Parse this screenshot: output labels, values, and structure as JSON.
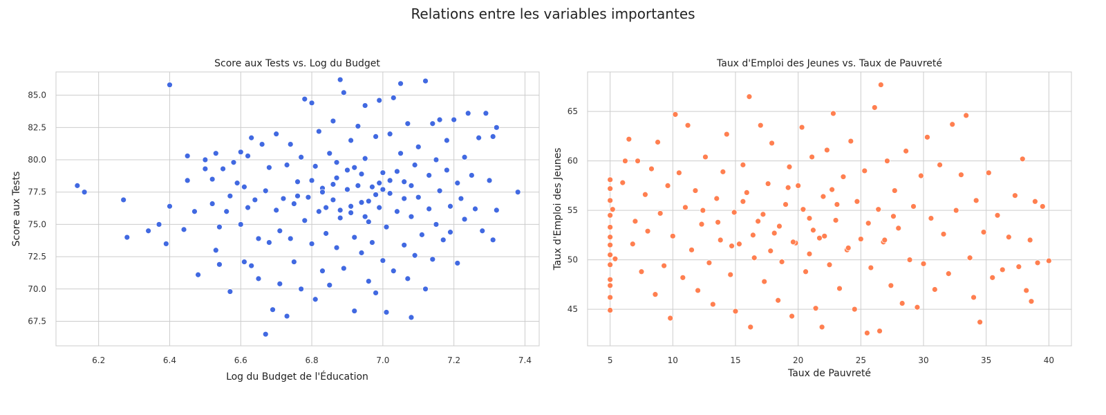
{
  "figure": {
    "suptitle": "Relations entre les variables importantes"
  },
  "chart_data": [
    {
      "type": "scatter",
      "title": "Score aux Tests vs. Log du Budget",
      "xlabel": "Log du Budget de l'Éducation",
      "ylabel": "Score aux Tests",
      "xlim": [
        6.08,
        7.44
      ],
      "ylim": [
        65.6,
        86.8
      ],
      "xticks": [
        6.2,
        6.4,
        6.6,
        6.8,
        7.0,
        7.2,
        7.4
      ],
      "xtick_labels": [
        "6.2",
        "6.4",
        "6.6",
        "6.8",
        "7.0",
        "7.2",
        "7.4"
      ],
      "yticks": [
        67.5,
        70.0,
        72.5,
        75.0,
        77.5,
        80.0,
        82.5,
        85.0
      ],
      "ytick_labels": [
        "67.5",
        "70.0",
        "72.5",
        "75.0",
        "77.5",
        "80.0",
        "82.5",
        "85.0"
      ],
      "grid": true,
      "color": "#4169E1",
      "points": [
        [
          6.14,
          78.0
        ],
        [
          6.16,
          77.5
        ],
        [
          6.27,
          76.9
        ],
        [
          6.28,
          74.0
        ],
        [
          6.34,
          74.5
        ],
        [
          6.37,
          75.0
        ],
        [
          6.39,
          73.5
        ],
        [
          6.4,
          76.4
        ],
        [
          6.4,
          85.8
        ],
        [
          6.44,
          74.6
        ],
        [
          6.45,
          78.4
        ],
        [
          6.45,
          80.3
        ],
        [
          6.47,
          76.0
        ],
        [
          6.48,
          71.1
        ],
        [
          6.5,
          79.3
        ],
        [
          6.5,
          80.0
        ],
        [
          6.52,
          76.6
        ],
        [
          6.52,
          78.5
        ],
        [
          6.53,
          80.5
        ],
        [
          6.53,
          73.0
        ],
        [
          6.54,
          71.9
        ],
        [
          6.54,
          74.8
        ],
        [
          6.55,
          79.3
        ],
        [
          6.56,
          76.0
        ],
        [
          6.57,
          69.8
        ],
        [
          6.57,
          77.2
        ],
        [
          6.58,
          79.8
        ],
        [
          6.59,
          78.2
        ],
        [
          6.6,
          75.0
        ],
        [
          6.6,
          80.6
        ],
        [
          6.61,
          72.1
        ],
        [
          6.61,
          77.9
        ],
        [
          6.62,
          76.3
        ],
        [
          6.62,
          80.3
        ],
        [
          6.63,
          81.7
        ],
        [
          6.63,
          71.8
        ],
        [
          6.64,
          76.9
        ],
        [
          6.65,
          73.9
        ],
        [
          6.65,
          70.8
        ],
        [
          6.66,
          81.2
        ],
        [
          6.67,
          66.5
        ],
        [
          6.67,
          77.6
        ],
        [
          6.68,
          73.6
        ],
        [
          6.68,
          79.4
        ],
        [
          6.69,
          68.4
        ],
        [
          6.7,
          76.1
        ],
        [
          6.7,
          82.0
        ],
        [
          6.71,
          70.4
        ],
        [
          6.71,
          74.5
        ],
        [
          6.72,
          77.0
        ],
        [
          6.73,
          79.6
        ],
        [
          6.73,
          67.9
        ],
        [
          6.74,
          81.2
        ],
        [
          6.74,
          73.9
        ],
        [
          6.75,
          76.6
        ],
        [
          6.75,
          72.1
        ],
        [
          6.76,
          78.3
        ],
        [
          6.77,
          70.0
        ],
        [
          6.77,
          80.2
        ],
        [
          6.78,
          75.3
        ],
        [
          6.78,
          84.7
        ],
        [
          6.79,
          77.1
        ],
        [
          6.8,
          73.5
        ],
        [
          6.8,
          84.4
        ],
        [
          6.81,
          69.2
        ],
        [
          6.81,
          79.5
        ],
        [
          6.82,
          76.0
        ],
        [
          6.82,
          82.2
        ],
        [
          6.83,
          71.4
        ],
        [
          6.83,
          77.8
        ],
        [
          6.84,
          74.3
        ],
        [
          6.85,
          80.5
        ],
        [
          6.85,
          70.3
        ],
        [
          6.86,
          76.9
        ],
        [
          6.86,
          83.0
        ],
        [
          6.87,
          73.2
        ],
        [
          6.87,
          78.6
        ],
        [
          6.88,
          86.2
        ],
        [
          6.88,
          75.5
        ],
        [
          6.89,
          85.2
        ],
        [
          6.89,
          71.6
        ],
        [
          6.9,
          79.2
        ],
        [
          6.91,
          76.4
        ],
        [
          6.91,
          81.5
        ],
        [
          6.92,
          68.3
        ],
        [
          6.92,
          74.0
        ],
        [
          6.93,
          78.0
        ],
        [
          6.93,
          82.6
        ],
        [
          6.94,
          72.8
        ],
        [
          6.94,
          76.7
        ],
        [
          6.95,
          80.1
        ],
        [
          6.95,
          84.2
        ],
        [
          6.96,
          70.6
        ],
        [
          6.96,
          75.2
        ],
        [
          6.97,
          77.9
        ],
        [
          6.97,
          73.6
        ],
        [
          6.98,
          69.7
        ],
        [
          6.98,
          81.8
        ],
        [
          6.99,
          76.3
        ],
        [
          6.99,
          84.6
        ],
        [
          7.0,
          72.2
        ],
        [
          7.0,
          79.0
        ],
        [
          7.01,
          74.8
        ],
        [
          7.01,
          68.2
        ],
        [
          7.02,
          82.0
        ],
        [
          7.02,
          77.4
        ],
        [
          7.03,
          71.4
        ],
        [
          7.03,
          84.8
        ],
        [
          7.04,
          76.0
        ],
        [
          7.05,
          80.5
        ],
        [
          7.05,
          85.9
        ],
        [
          7.06,
          73.4
        ],
        [
          7.06,
          78.3
        ],
        [
          7.07,
          70.8
        ],
        [
          7.07,
          82.8
        ],
        [
          7.08,
          67.8
        ],
        [
          7.08,
          75.6
        ],
        [
          7.09,
          79.6
        ],
        [
          7.09,
          72.6
        ],
        [
          7.1,
          81.0
        ],
        [
          7.1,
          77.1
        ],
        [
          7.11,
          74.2
        ],
        [
          7.12,
          70.0
        ],
        [
          7.12,
          86.1
        ],
        [
          7.13,
          78.8
        ],
        [
          7.13,
          76.2
        ],
        [
          7.14,
          72.3
        ],
        [
          7.14,
          82.8
        ],
        [
          7.15,
          80.0
        ],
        [
          7.15,
          75.0
        ],
        [
          7.16,
          83.1
        ],
        [
          7.16,
          77.6
        ],
        [
          7.17,
          73.8
        ],
        [
          7.18,
          79.2
        ],
        [
          7.18,
          81.5
        ],
        [
          7.19,
          76.4
        ],
        [
          7.19,
          74.4
        ],
        [
          7.2,
          83.1
        ],
        [
          7.21,
          78.2
        ],
        [
          7.21,
          72.0
        ],
        [
          7.22,
          77.0
        ],
        [
          7.23,
          80.2
        ],
        [
          7.23,
          75.4
        ],
        [
          7.24,
          83.6
        ],
        [
          7.25,
          78.8
        ],
        [
          7.26,
          76.2
        ],
        [
          7.27,
          81.7
        ],
        [
          7.28,
          74.5
        ],
        [
          7.29,
          83.6
        ],
        [
          7.3,
          78.4
        ],
        [
          7.31,
          81.8
        ],
        [
          7.31,
          73.8
        ],
        [
          7.32,
          76.1
        ],
        [
          7.32,
          82.5
        ],
        [
          7.38,
          77.5
        ],
        [
          6.83,
          77.5
        ],
        [
          6.86,
          78.1
        ],
        [
          6.9,
          77.7
        ],
        [
          6.94,
          78.9
        ],
        [
          6.98,
          77.3
        ],
        [
          7.02,
          78.4
        ],
        [
          7.06,
          77.0
        ],
        [
          6.76,
          77.2
        ],
        [
          6.88,
          76.1
        ],
        [
          6.92,
          79.4
        ],
        [
          6.96,
          76.8
        ],
        [
          7.0,
          77.7
        ],
        [
          7.04,
          79.1
        ],
        [
          6.8,
          78.4
        ],
        [
          6.84,
          76.3
        ],
        [
          6.95,
          75.6
        ],
        [
          6.99,
          78.2
        ],
        [
          6.87,
          79.8
        ],
        [
          6.91,
          75.9
        ],
        [
          7.08,
          78.0
        ]
      ]
    },
    {
      "type": "scatter",
      "title": "Taux d'Emploi des Jeunes vs. Taux de Pauvreté",
      "xlabel": "Taux de Pauvreté",
      "ylabel": "Taux d'Emploi des Jeunes",
      "xlim": [
        3.2,
        41.8
      ],
      "ylim": [
        41.3,
        69.0
      ],
      "xticks": [
        5,
        10,
        15,
        20,
        25,
        30,
        35,
        40
      ],
      "xtick_labels": [
        "5",
        "10",
        "15",
        "20",
        "25",
        "30",
        "35",
        "40"
      ],
      "yticks": [
        45,
        50,
        55,
        60,
        65
      ],
      "ytick_labels": [
        "45",
        "50",
        "55",
        "60",
        "65"
      ],
      "grid": true,
      "color": "#FF7F50",
      "points": [
        [
          5.0,
          44.9
        ],
        [
          5.0,
          46.2
        ],
        [
          5.0,
          47.4
        ],
        [
          5.0,
          48.0
        ],
        [
          5.0,
          49.5
        ],
        [
          5.0,
          50.5
        ],
        [
          5.0,
          51.5
        ],
        [
          5.0,
          52.3
        ],
        [
          5.0,
          53.3
        ],
        [
          5.0,
          54.5
        ],
        [
          5.0,
          56.0
        ],
        [
          5.0,
          57.2
        ],
        [
          5.0,
          58.1
        ],
        [
          5.2,
          55.1
        ],
        [
          5.4,
          50.1
        ],
        [
          6.0,
          57.8
        ],
        [
          6.2,
          60.0
        ],
        [
          6.5,
          62.2
        ],
        [
          6.8,
          51.6
        ],
        [
          7.0,
          53.9
        ],
        [
          7.2,
          60.0
        ],
        [
          7.5,
          48.8
        ],
        [
          7.8,
          56.6
        ],
        [
          8.0,
          52.9
        ],
        [
          8.3,
          59.2
        ],
        [
          8.6,
          46.5
        ],
        [
          8.8,
          61.9
        ],
        [
          9.0,
          54.7
        ],
        [
          9.3,
          49.4
        ],
        [
          9.6,
          57.5
        ],
        [
          9.8,
          44.1
        ],
        [
          10.0,
          52.4
        ],
        [
          10.2,
          64.7
        ],
        [
          10.5,
          58.8
        ],
        [
          10.8,
          48.2
        ],
        [
          11.0,
          55.3
        ],
        [
          11.2,
          63.6
        ],
        [
          11.5,
          51.0
        ],
        [
          11.8,
          57.0
        ],
        [
          12.0,
          46.9
        ],
        [
          12.3,
          53.6
        ],
        [
          12.6,
          60.4
        ],
        [
          12.9,
          49.7
        ],
        [
          13.2,
          45.5
        ],
        [
          13.5,
          56.2
        ],
        [
          13.8,
          52.0
        ],
        [
          14.0,
          58.9
        ],
        [
          14.3,
          62.7
        ],
        [
          14.6,
          48.5
        ],
        [
          14.9,
          54.8
        ],
        [
          15.0,
          44.8
        ],
        [
          15.3,
          51.6
        ],
        [
          15.6,
          59.6
        ],
        [
          15.9,
          56.8
        ],
        [
          16.1,
          66.5
        ],
        [
          16.2,
          43.2
        ],
        [
          16.5,
          50.2
        ],
        [
          16.8,
          53.9
        ],
        [
          17.0,
          63.6
        ],
        [
          17.3,
          47.8
        ],
        [
          17.6,
          57.7
        ],
        [
          17.9,
          61.8
        ],
        [
          18.1,
          52.7
        ],
        [
          18.4,
          45.9
        ],
        [
          18.7,
          49.8
        ],
        [
          19.0,
          55.6
        ],
        [
          19.3,
          59.4
        ],
        [
          19.5,
          44.3
        ],
        [
          19.8,
          51.7
        ],
        [
          20.0,
          57.5
        ],
        [
          20.3,
          63.4
        ],
        [
          20.6,
          48.8
        ],
        [
          20.9,
          54.2
        ],
        [
          21.1,
          60.4
        ],
        [
          21.4,
          45.1
        ],
        [
          21.7,
          52.2
        ],
        [
          21.9,
          43.2
        ],
        [
          22.0,
          56.4
        ],
        [
          22.3,
          61.1
        ],
        [
          22.5,
          49.5
        ],
        [
          22.8,
          64.8
        ],
        [
          23.0,
          54.0
        ],
        [
          23.3,
          47.1
        ],
        [
          23.6,
          58.4
        ],
        [
          23.9,
          51.0
        ],
        [
          24.2,
          62.0
        ],
        [
          24.5,
          45.0
        ],
        [
          24.7,
          55.9
        ],
        [
          25.0,
          52.1
        ],
        [
          25.3,
          59.0
        ],
        [
          25.5,
          42.6
        ],
        [
          25.8,
          49.2
        ],
        [
          26.1,
          65.4
        ],
        [
          26.4,
          55.1
        ],
        [
          26.5,
          42.8
        ],
        [
          26.6,
          67.7
        ],
        [
          26.8,
          51.8
        ],
        [
          27.1,
          60.0
        ],
        [
          27.4,
          47.4
        ],
        [
          27.7,
          57.0
        ],
        [
          28.0,
          53.2
        ],
        [
          28.3,
          45.6
        ],
        [
          28.6,
          61.0
        ],
        [
          28.9,
          50.0
        ],
        [
          29.2,
          55.4
        ],
        [
          29.5,
          45.2
        ],
        [
          29.8,
          58.5
        ],
        [
          30.0,
          49.6
        ],
        [
          30.3,
          62.4
        ],
        [
          30.6,
          54.2
        ],
        [
          30.9,
          47.0
        ],
        [
          31.3,
          59.6
        ],
        [
          31.6,
          52.6
        ],
        [
          32.0,
          48.6
        ],
        [
          32.3,
          63.7
        ],
        [
          32.6,
          55.0
        ],
        [
          33.0,
          58.6
        ],
        [
          33.4,
          64.6
        ],
        [
          33.7,
          50.2
        ],
        [
          34.0,
          46.2
        ],
        [
          34.2,
          56.0
        ],
        [
          34.5,
          43.7
        ],
        [
          34.8,
          52.8
        ],
        [
          35.2,
          58.8
        ],
        [
          35.5,
          48.2
        ],
        [
          35.9,
          54.5
        ],
        [
          36.3,
          49.0
        ],
        [
          36.8,
          52.3
        ],
        [
          37.3,
          56.5
        ],
        [
          37.6,
          49.3
        ],
        [
          37.9,
          60.2
        ],
        [
          38.2,
          46.9
        ],
        [
          38.5,
          52.0
        ],
        [
          38.6,
          45.8
        ],
        [
          38.9,
          55.9
        ],
        [
          39.1,
          49.7
        ],
        [
          39.5,
          55.4
        ],
        [
          40.0,
          49.9
        ],
        [
          18.5,
          53.4
        ],
        [
          19.6,
          51.8
        ],
        [
          20.4,
          55.1
        ],
        [
          21.2,
          53.0
        ],
        [
          22.1,
          52.4
        ],
        [
          23.1,
          55.6
        ],
        [
          24.0,
          51.2
        ],
        [
          17.2,
          54.6
        ],
        [
          16.4,
          52.5
        ],
        [
          15.6,
          55.9
        ],
        [
          25.6,
          53.7
        ],
        [
          26.9,
          52.0
        ],
        [
          14.7,
          51.4
        ],
        [
          13.6,
          53.8
        ],
        [
          20.9,
          50.6
        ],
        [
          19.2,
          57.3
        ],
        [
          22.7,
          57.1
        ],
        [
          12.4,
          55.0
        ],
        [
          27.6,
          54.4
        ],
        [
          17.8,
          50.9
        ]
      ]
    }
  ]
}
